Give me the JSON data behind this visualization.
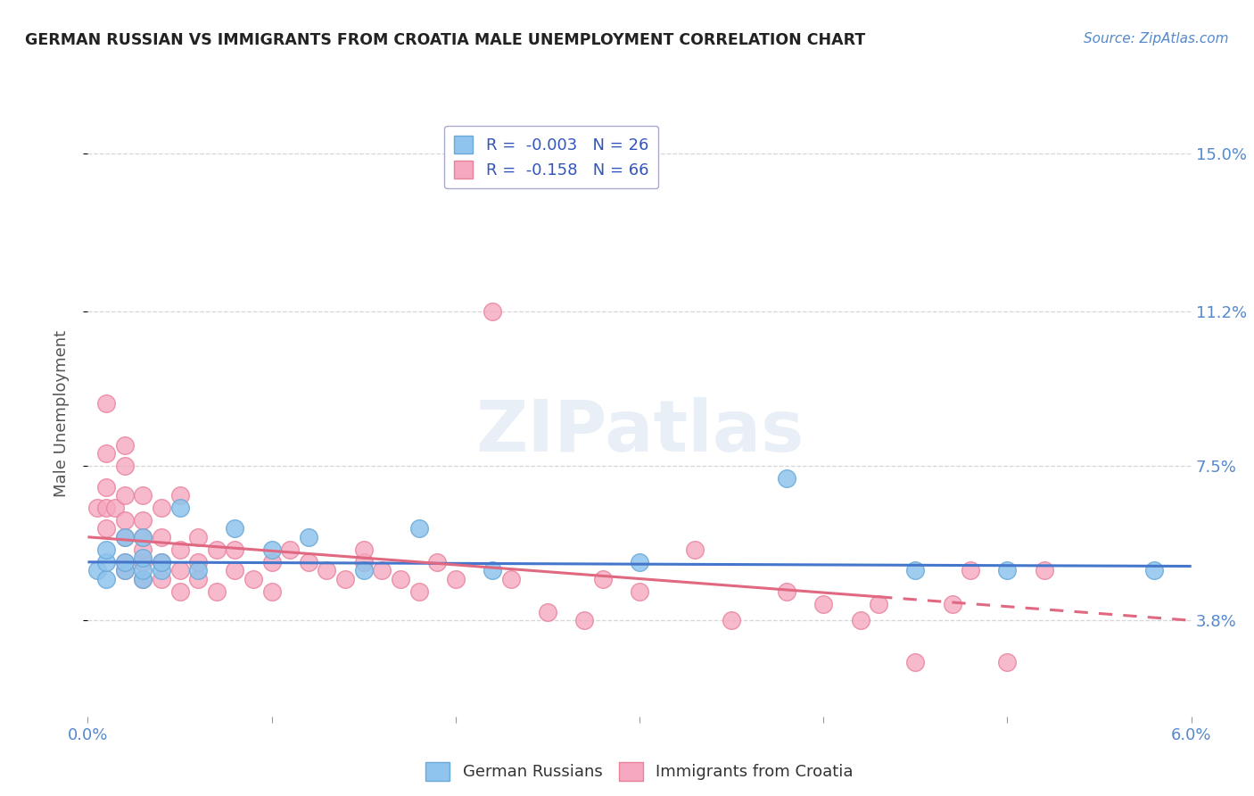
{
  "title": "GERMAN RUSSIAN VS IMMIGRANTS FROM CROATIA MALE UNEMPLOYMENT CORRELATION CHART",
  "source_text": "Source: ZipAtlas.com",
  "ylabel": "Male Unemployment",
  "watermark": "ZIPatlas",
  "xlim": [
    0.0,
    0.06
  ],
  "ylim": [
    0.015,
    0.16
  ],
  "yticks": [
    0.038,
    0.075,
    0.112,
    0.15
  ],
  "ytick_labels": [
    "3.8%",
    "7.5%",
    "11.2%",
    "15.0%"
  ],
  "xticks": [
    0.0,
    0.01,
    0.02,
    0.03,
    0.04,
    0.05,
    0.06
  ],
  "xtick_labels_show": [
    "0.0%",
    "",
    "",
    "",
    "",
    "",
    "6.0%"
  ],
  "series1_label": "German Russians",
  "series1_color": "#8EC4ED",
  "series1_edge": "#6AAAD8",
  "series1_R": "-0.003",
  "series1_N": "26",
  "series2_label": "Immigrants from Croatia",
  "series2_color": "#F5A8C0",
  "series2_edge": "#E8809A",
  "series2_R": "-0.158",
  "series2_N": "66",
  "legend_R_color": "#3355BB",
  "trend1_color": "#4477CC",
  "trend2_color": "#E06880",
  "bg_color": "#FFFFFF",
  "grid_color": "#CCCCCC",
  "axis_label_color": "#555555",
  "tick_color": "#5588CC",
  "title_color": "#222222",
  "german_russian_x": [
    0.0005,
    0.001,
    0.001,
    0.001,
    0.002,
    0.002,
    0.002,
    0.003,
    0.003,
    0.003,
    0.003,
    0.004,
    0.004,
    0.005,
    0.006,
    0.008,
    0.01,
    0.012,
    0.015,
    0.018,
    0.022,
    0.03,
    0.038,
    0.045,
    0.05,
    0.058
  ],
  "german_russian_y": [
    0.05,
    0.048,
    0.052,
    0.055,
    0.05,
    0.052,
    0.058,
    0.048,
    0.05,
    0.053,
    0.058,
    0.05,
    0.052,
    0.065,
    0.05,
    0.06,
    0.055,
    0.058,
    0.05,
    0.06,
    0.05,
    0.052,
    0.072,
    0.05,
    0.05,
    0.05
  ],
  "croatia_x": [
    0.0005,
    0.001,
    0.001,
    0.001,
    0.001,
    0.001,
    0.0015,
    0.002,
    0.002,
    0.002,
    0.002,
    0.002,
    0.002,
    0.002,
    0.003,
    0.003,
    0.003,
    0.003,
    0.003,
    0.003,
    0.004,
    0.004,
    0.004,
    0.004,
    0.005,
    0.005,
    0.005,
    0.005,
    0.006,
    0.006,
    0.006,
    0.007,
    0.007,
    0.008,
    0.008,
    0.009,
    0.01,
    0.01,
    0.011,
    0.012,
    0.013,
    0.014,
    0.015,
    0.015,
    0.016,
    0.017,
    0.018,
    0.019,
    0.02,
    0.022,
    0.023,
    0.025,
    0.027,
    0.028,
    0.03,
    0.033,
    0.035,
    0.038,
    0.04,
    0.042,
    0.043,
    0.045,
    0.047,
    0.048,
    0.05,
    0.052
  ],
  "croatia_y": [
    0.065,
    0.06,
    0.065,
    0.07,
    0.078,
    0.09,
    0.065,
    0.05,
    0.052,
    0.058,
    0.062,
    0.068,
    0.075,
    0.08,
    0.048,
    0.052,
    0.055,
    0.058,
    0.062,
    0.068,
    0.048,
    0.052,
    0.058,
    0.065,
    0.045,
    0.05,
    0.055,
    0.068,
    0.048,
    0.052,
    0.058,
    0.045,
    0.055,
    0.05,
    0.055,
    0.048,
    0.045,
    0.052,
    0.055,
    0.052,
    0.05,
    0.048,
    0.052,
    0.055,
    0.05,
    0.048,
    0.045,
    0.052,
    0.048,
    0.112,
    0.048,
    0.04,
    0.038,
    0.048,
    0.045,
    0.055,
    0.038,
    0.045,
    0.042,
    0.038,
    0.042,
    0.028,
    0.042,
    0.05,
    0.028,
    0.05
  ],
  "trend1_start_x": 0.0,
  "trend1_end_x": 0.06,
  "trend1_start_y": 0.052,
  "trend1_end_y": 0.051,
  "trend2_solid_end_x": 0.043,
  "trend2_start_x": 0.0,
  "trend2_end_x": 0.06,
  "trend2_start_y": 0.058,
  "trend2_end_y": 0.038
}
